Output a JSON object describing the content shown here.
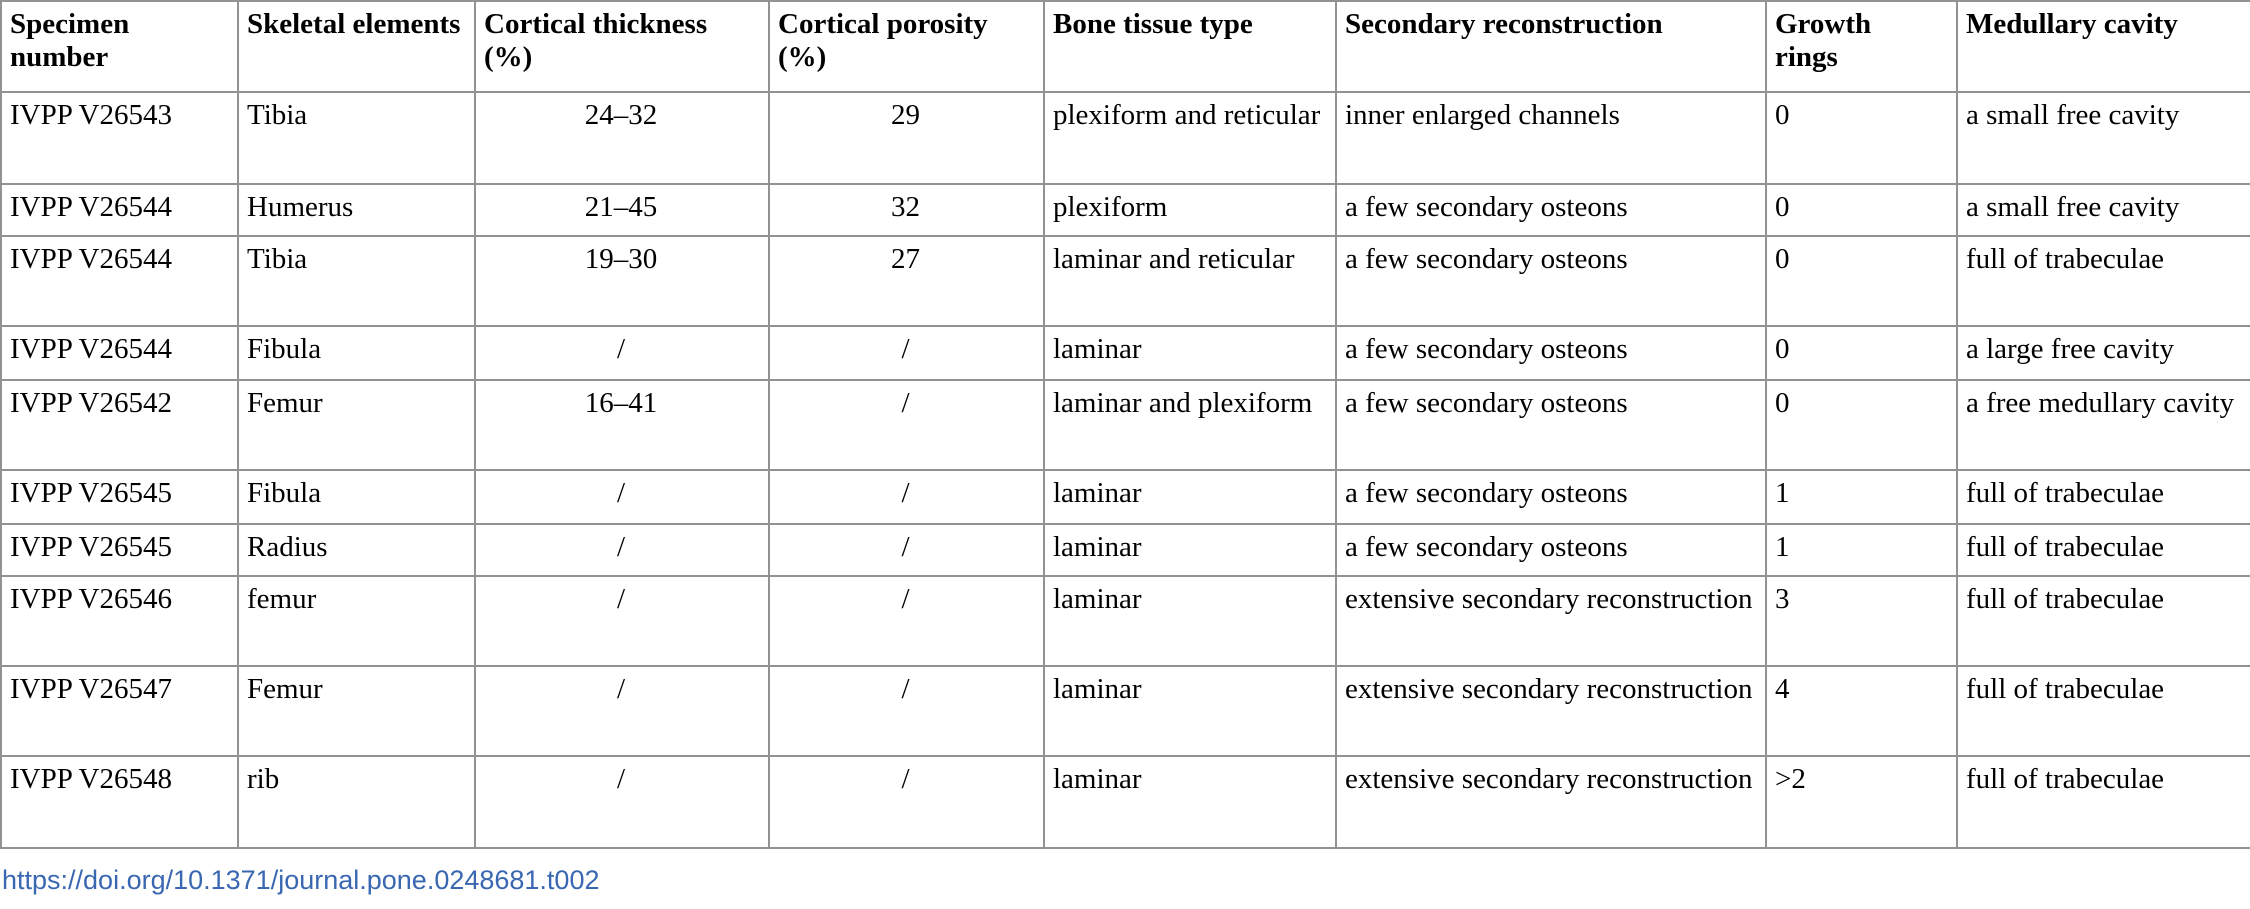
{
  "table": {
    "headers": [
      "Specimen number",
      "Skeletal elements",
      "Cortical thickness (%)",
      "Cortical porosity (%)",
      "Bone tissue type",
      "Secondary reconstruction",
      "Growth rings",
      "Medullary cavity"
    ],
    "rows": [
      {
        "cells": [
          "IVPP V26543",
          "Tibia",
          "24–32",
          "29",
          "plexiform and reticular",
          "inner enlarged channels",
          "0",
          "a small free cavity"
        ]
      },
      {
        "cells": [
          "IVPP V26544",
          "Humerus",
          "21–45",
          "32",
          "plexiform",
          "a few secondary osteons",
          "0",
          "a small free cavity"
        ]
      },
      {
        "cells": [
          "IVPP V26544",
          "Tibia",
          "19–30",
          "27",
          "laminar and reticular",
          "a few secondary osteons",
          "0",
          "full of trabeculae"
        ]
      },
      {
        "cells": [
          "IVPP V26544",
          "Fibula",
          "/",
          "/",
          "laminar",
          "a few secondary osteons",
          "0",
          "a large free cavity"
        ]
      },
      {
        "cells": [
          "IVPP V26542",
          "Femur",
          "16–41",
          "/",
          "laminar and plexiform",
          "a few secondary osteons",
          "0",
          "a free medullary cavity"
        ]
      },
      {
        "cells": [
          "IVPP V26545",
          "Fibula",
          "/",
          "/",
          "laminar",
          "a few secondary osteons",
          "1",
          "full of trabeculae"
        ]
      },
      {
        "cells": [
          "IVPP V26545",
          "Radius",
          "/",
          "/",
          "laminar",
          "a few secondary osteons",
          "1",
          "full of trabeculae"
        ]
      },
      {
        "cells": [
          "IVPP V26546",
          "femur",
          "/",
          "/",
          "laminar",
          "extensive secondary reconstruction",
          "3",
          "full of trabeculae"
        ]
      },
      {
        "cells": [
          "IVPP V26547",
          "Femur",
          "/",
          "/",
          "laminar",
          "extensive secondary reconstruction",
          "4",
          "full of trabeculae"
        ]
      },
      {
        "cells": [
          "IVPP V26548",
          "rib",
          "/",
          "/",
          "laminar",
          "extensive secondary reconstruction",
          ">2",
          "full of trabeculae"
        ]
      }
    ]
  },
  "footer": {
    "doi_link_text": "https://doi.org/10.1371/journal.pone.0248681.t002"
  },
  "colors": {
    "link_blue": "#3a67b1",
    "border_gray": "#929292",
    "text_black": "#000000",
    "background": "#ffffff"
  }
}
